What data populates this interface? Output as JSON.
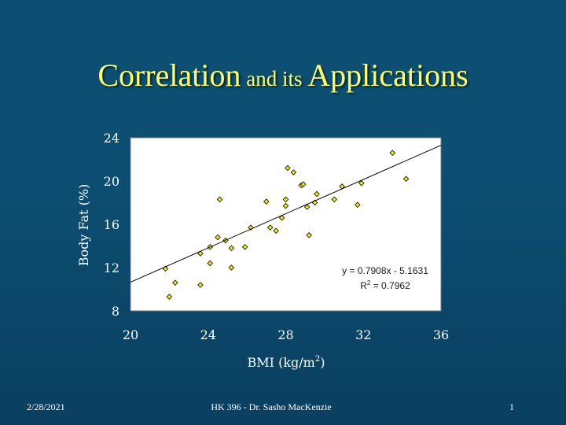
{
  "title": {
    "part1": "Correlation",
    "part2": " and its ",
    "part3": "Applications"
  },
  "chart_data": {
    "type": "scatter",
    "title": "",
    "xlabel": "BMI (kg/m",
    "xlabel_sup": "2",
    "xlabel_end": ")",
    "ylabel": "Body Fat (%)",
    "xlim": [
      20,
      36
    ],
    "ylim": [
      8,
      24
    ],
    "xticks": [
      20,
      24,
      28,
      32,
      36
    ],
    "yticks": [
      8,
      12,
      16,
      20,
      24
    ],
    "grid": false,
    "points": [
      [
        22.0,
        9.3
      ],
      [
        21.8,
        11.9
      ],
      [
        22.3,
        10.6
      ],
      [
        23.6,
        10.4
      ],
      [
        23.6,
        13.3
      ],
      [
        24.1,
        12.4
      ],
      [
        24.1,
        13.9
      ],
      [
        24.5,
        14.8
      ],
      [
        24.6,
        18.3
      ],
      [
        24.9,
        14.5
      ],
      [
        25.2,
        13.8
      ],
      [
        25.2,
        12.0
      ],
      [
        25.9,
        13.9
      ],
      [
        26.2,
        15.7
      ],
      [
        27.0,
        18.1
      ],
      [
        27.2,
        15.7
      ],
      [
        27.5,
        15.4
      ],
      [
        27.8,
        16.6
      ],
      [
        28.0,
        17.7
      ],
      [
        28.0,
        18.3
      ],
      [
        28.1,
        21.2
      ],
      [
        28.4,
        20.8
      ],
      [
        28.8,
        19.6
      ],
      [
        28.9,
        19.7
      ],
      [
        29.2,
        15.0
      ],
      [
        29.1,
        17.6
      ],
      [
        29.5,
        18.0
      ],
      [
        29.6,
        18.8
      ],
      [
        30.5,
        18.3
      ],
      [
        30.9,
        19.5
      ],
      [
        31.7,
        17.8
      ],
      [
        31.9,
        19.8
      ],
      [
        33.5,
        22.6
      ],
      [
        34.2,
        20.2
      ]
    ],
    "trendline": {
      "slope": 0.7908,
      "intercept": -5.1631,
      "equation": "y = 0.7908x - 5.1631",
      "r2_prefix": "R",
      "r2_sup": "2",
      "r2_value": " = 0.7962"
    },
    "colors": {
      "plot_bg": "#ffffff",
      "marker": "#f0f000",
      "marker_edge": "#000000",
      "trendline": "#000000",
      "equation_text": "#1a1a1a",
      "axis_text": "#ffffff"
    }
  },
  "footer": {
    "date": "2/28/2021",
    "course": "HK 396 - Dr. Sasho MacKenzie",
    "page": "1"
  }
}
